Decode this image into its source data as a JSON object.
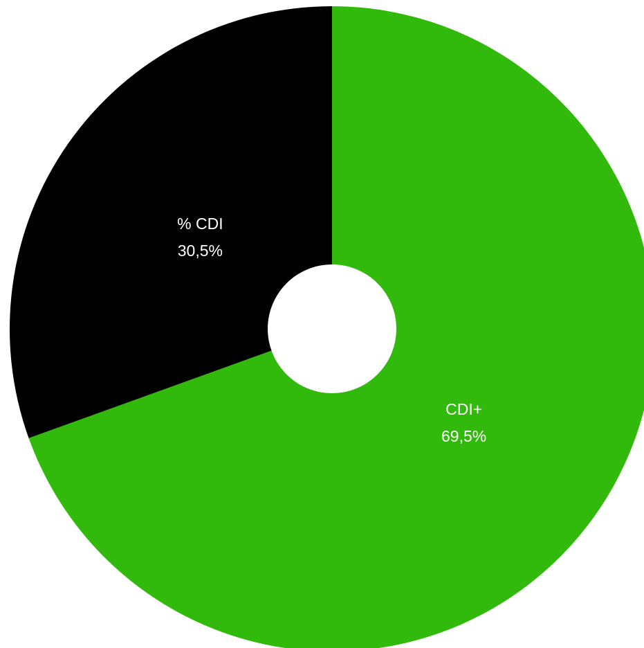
{
  "chart_data": {
    "type": "pie",
    "variant": "donut",
    "slices": [
      {
        "label": "CDI+",
        "value": 69.5,
        "value_label": "69,5%",
        "color": "#31b90c"
      },
      {
        "label": "% CDI",
        "value": 30.5,
        "value_label": "30,5%",
        "color": "#000000"
      }
    ],
    "start": "top, clockwise",
    "label_color": "#ffffff",
    "hole_color": "#ffffff"
  }
}
